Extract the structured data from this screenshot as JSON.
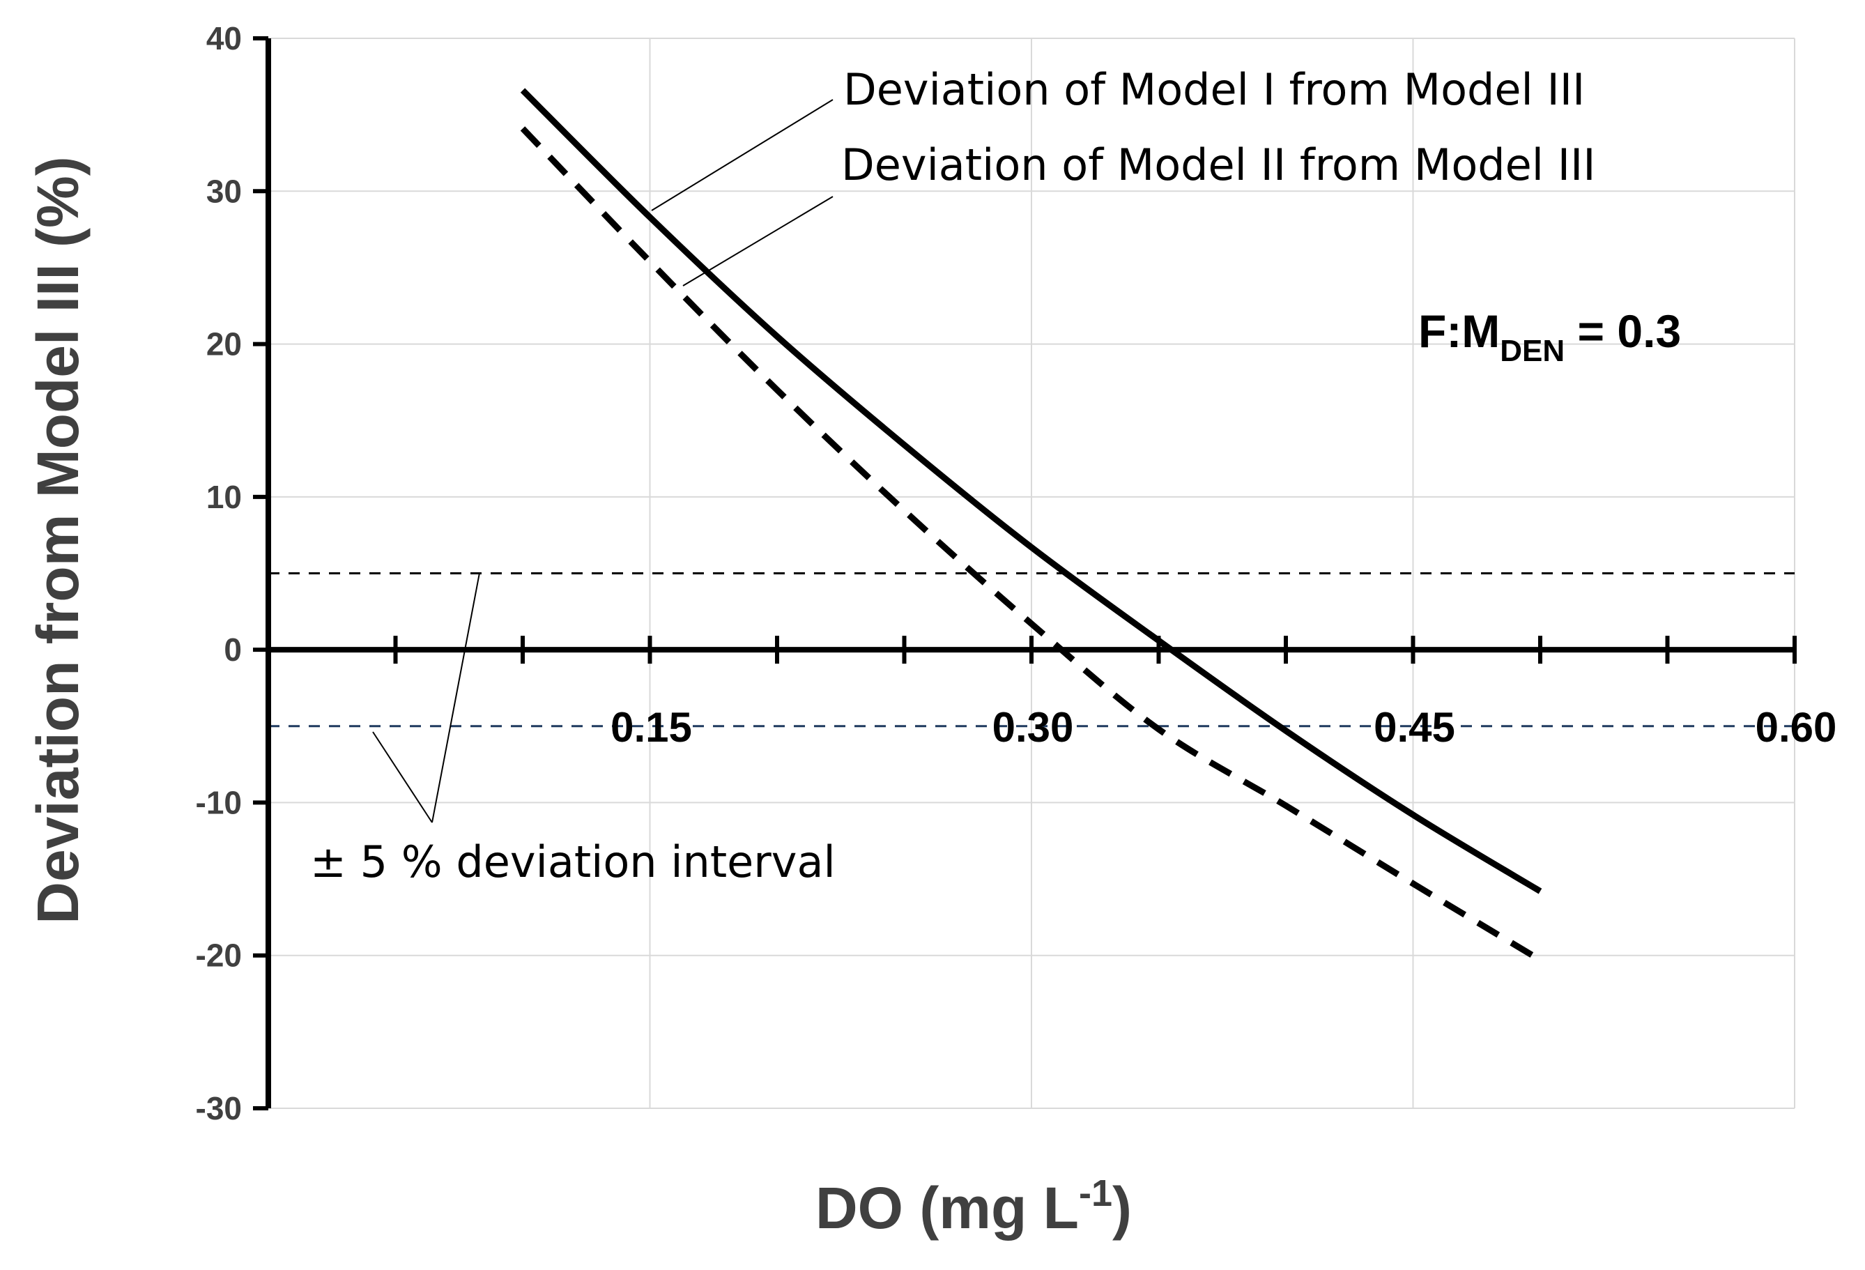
{
  "chart_data": {
    "type": "line",
    "xlabel": "DO  (mg L",
    "xlabel_sup": "-1",
    "xlabel_end": ")",
    "ylabel": "Deviation from Model III (%)",
    "xlim": [
      0,
      0.6
    ],
    "ylim": [
      -30,
      40
    ],
    "x_ticks": [
      "0.15",
      "0.30",
      "0.45",
      "0.60"
    ],
    "x_tick_values": [
      0.15,
      0.3,
      0.45,
      0.6
    ],
    "x_minor_step": 0.05,
    "y_ticks": [
      "40",
      "30",
      "20",
      "10",
      "0",
      "-10",
      "-20",
      "-30"
    ],
    "y_tick_values": [
      40,
      30,
      20,
      10,
      0,
      -10,
      -20,
      -30
    ],
    "grid": true,
    "series": [
      {
        "name": "Deviation of Model I from Model III",
        "style": "solid",
        "color": "#000000",
        "x": [
          0.1,
          0.15,
          0.2,
          0.25,
          0.3,
          0.35,
          0.4,
          0.45,
          0.5
        ],
        "y": [
          36.6,
          28.3,
          20.5,
          13.4,
          6.7,
          0.6,
          -5.3,
          -10.8,
          -15.8
        ]
      },
      {
        "name": "Deviation of Model II from Model III",
        "style": "dashed",
        "color": "#000000",
        "x": [
          0.1,
          0.15,
          0.2,
          0.25,
          0.3,
          0.35,
          0.4,
          0.45,
          0.5
        ],
        "y": [
          34.1,
          25.4,
          17.0,
          9.1,
          1.7,
          -5.2,
          -10.2,
          -15.3,
          -20.3
        ]
      }
    ],
    "reference_lines": [
      {
        "y": 5,
        "color": "#000000"
      },
      {
        "y": -5,
        "color": "#1f3a5f"
      }
    ],
    "annotations": {
      "model1_label": "Deviation of Model I from Model III",
      "model2_label": "Deviation of Model II from Model III",
      "interval_label": "± 5 % deviation interval",
      "fm_main": "F:M",
      "fm_sub": "DEN",
      "fm_value": " = 0.3"
    }
  }
}
